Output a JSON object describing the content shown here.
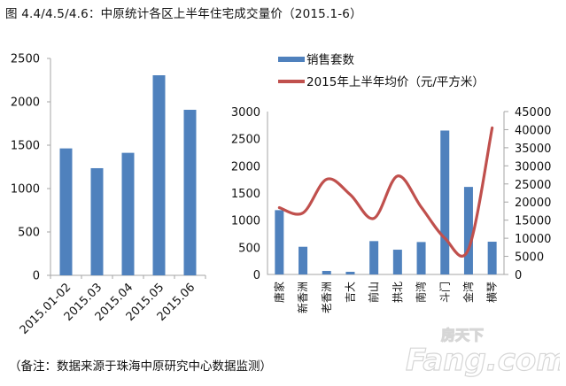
{
  "title": "图 4.4/4.5/4.6：中原统计各区上半年住宅成交量价（2015.1-6）",
  "footnote": "（备注：数据来源于珠海中原研究中心数据监测）",
  "watermark": {
    "cn": "房天下",
    "en": "Fang.com"
  },
  "colors": {
    "bar": "#4F81BD",
    "line": "#C0504D",
    "axis": "#A6A6A6"
  },
  "chart_data": [
    {
      "type": "bar",
      "title": "",
      "xlabel": "",
      "ylabel": "",
      "categories": [
        "2015.01-02",
        "2015.03",
        "2015.04",
        "2015.05",
        "2015.06"
      ],
      "values": [
        1463,
        1235,
        1412,
        2306,
        1908
      ],
      "ylim": [
        0,
        2500
      ],
      "yticks": [
        0,
        500,
        1000,
        1500,
        2000,
        2500
      ],
      "grid": false,
      "legend": null
    },
    {
      "type": "bar+line",
      "title": "",
      "categories": [
        "唐家",
        "新香洲",
        "老香洲",
        "吉大",
        "前山",
        "拱北",
        "南湾",
        "斗门",
        "金湾",
        "横琴"
      ],
      "series": [
        {
          "name": "销售套数",
          "type": "bar",
          "axis": "left",
          "values": [
            1184,
            510,
            65,
            49,
            614,
            456,
            597,
            2650,
            1612,
            603
          ]
        },
        {
          "name": "2015年上半年均价（元/平方米）",
          "type": "line",
          "axis": "right",
          "values": [
            18450,
            17000,
            26300,
            22050,
            15500,
            27200,
            18600,
            10000,
            7000,
            40500
          ]
        }
      ],
      "ylim_left": [
        0,
        3000
      ],
      "yticks_left": [
        0,
        500,
        1000,
        1500,
        2000,
        2500,
        3000
      ],
      "ylim_right": [
        0,
        45000
      ],
      "yticks_right": [
        0,
        5000,
        10000,
        15000,
        20000,
        25000,
        30000,
        35000,
        40000,
        45000
      ],
      "grid": false,
      "legend": {
        "position": "top",
        "entries": [
          "销售套数",
          "2015年上半年均价（元/平方米）"
        ]
      }
    }
  ]
}
